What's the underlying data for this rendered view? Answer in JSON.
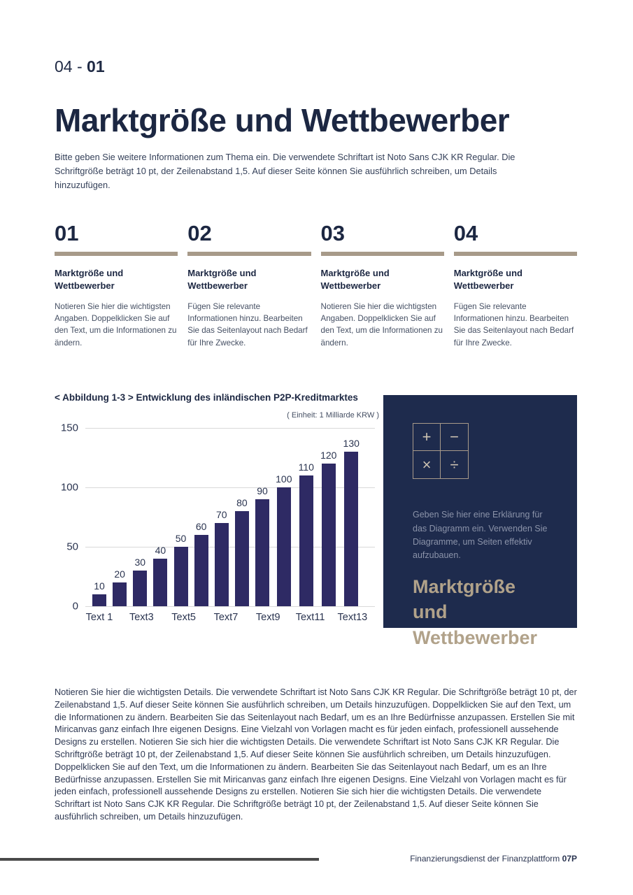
{
  "header": {
    "section_label": "04 -",
    "page_number": "01",
    "title": "Marktgröße und Wettbewerber",
    "intro": "Bitte geben Sie weitere Informationen zum Thema ein. Die verwendete Schriftart ist Noto Sans CJK KR Regular. Die Schriftgröße beträgt 10 pt, der Zeilenabstand 1,5. Auf dieser Seite können Sie ausführlich schreiben, um Details hinzuzufügen."
  },
  "columns": [
    {
      "number": "01",
      "heading": "Marktgröße und Wettbewerber",
      "body": "Notieren Sie hier die wichtigsten Angaben. Doppelklicken Sie auf den Text, um die Informationen zu ändern."
    },
    {
      "number": "02",
      "heading": "Marktgröße und Wettbewerber",
      "body": "Fügen Sie relevante Informationen hinzu. Bearbeiten Sie das Seitenlayout nach Bedarf für Ihre Zwecke."
    },
    {
      "number": "03",
      "heading": "Marktgröße und Wettbewerber",
      "body": "Notieren Sie hier die wichtigsten Angaben. Doppelklicken Sie auf den Text, um die Informationen zu ändern."
    },
    {
      "number": "04",
      "heading": "Marktgröße und Wettbewerber",
      "body": "Fügen Sie relevante Informationen hinzu. Bearbeiten Sie das Seitenlayout nach Bedarf für Ihre Zwecke."
    }
  ],
  "chart_data": {
    "type": "bar",
    "title": "< Abbildung 1-3 > Entwicklung des inländischen P2P-Kreditmarktes",
    "unit_label": "( Einheit: 1 Milliarde KRW )",
    "x_tick_labels": [
      "Text 1",
      "Text3",
      "Text5",
      "Text7",
      "Text9",
      "Text11",
      "Text13"
    ],
    "values": [
      10,
      20,
      30,
      40,
      50,
      60,
      70,
      80,
      90,
      100,
      110,
      120,
      130
    ],
    "y_ticks": [
      0,
      50,
      100,
      150
    ],
    "ylim": [
      0,
      150
    ],
    "bar_color": "#2e2a64",
    "grid": true,
    "legend": false
  },
  "panel": {
    "calc_symbols": [
      "+",
      "−",
      "×",
      "÷"
    ],
    "description": "Geben Sie hier eine Erklärung für das Diagramm ein. Verwenden Sie Diagramme, um Seiten effektiv aufzubauen.",
    "title": "Marktgröße und Wettbewerber",
    "background_color": "#1e2b4d",
    "title_color": "#b1a28a"
  },
  "details_paragraph": "Notieren Sie hier die wichtigsten Details. Die verwendete Schriftart ist Noto Sans CJK KR Regular. Die Schriftgröße beträgt 10 pt, der Zeilenabstand 1,5. Auf dieser Seite können Sie ausführlich schreiben, um Details hinzuzufügen. Doppelklicken Sie auf den Text, um die Informationen zu ändern. Bearbeiten Sie das Seitenlayout nach Bedarf, um es an Ihre Bedürfnisse anzupassen. Erstellen Sie mit Miricanvas ganz einfach Ihre eigenen Designs. Eine Vielzahl von Vorlagen macht es für jeden einfach, professionell aussehende Designs zu erstellen. Notieren Sie sich hier die wichtigsten Details. Die verwendete Schriftart ist Noto Sans CJK KR Regular. Die Schriftgröße beträgt 10 pt, der Zeilenabstand 1,5. Auf dieser Seite können Sie ausführlich schreiben, um Details hinzuzufügen. Doppelklicken Sie auf den Text, um die Informationen zu ändern. Bearbeiten Sie das Seitenlayout nach Bedarf, um es an Ihre Bedürfnisse anzupassen. Erstellen Sie mit Miricanvas ganz einfach Ihre eigenen Designs. Eine Vielzahl von Vorlagen macht es für jeden einfach, professionell aussehende Designs zu erstellen. Notieren Sie sich hier die wichtigsten Details. Die verwendete Schriftart ist Noto Sans CJK KR Regular. Die Schriftgröße beträgt 10 pt, der Zeilenabstand 1,5. Auf dieser Seite können Sie ausführlich schreiben, um Details hinzuzufügen.",
  "footer": {
    "text": "Finanzierungsdienst der Finanzplattform",
    "brand": "07P"
  },
  "colors": {
    "heading_navy": "#1c2742",
    "divider_taupe": "#a79a89",
    "bar_indigo": "#2e2a64",
    "panel_navy": "#1e2b4d",
    "panel_gold": "#b1a28a",
    "footer_rule": "#4a4a4a"
  }
}
